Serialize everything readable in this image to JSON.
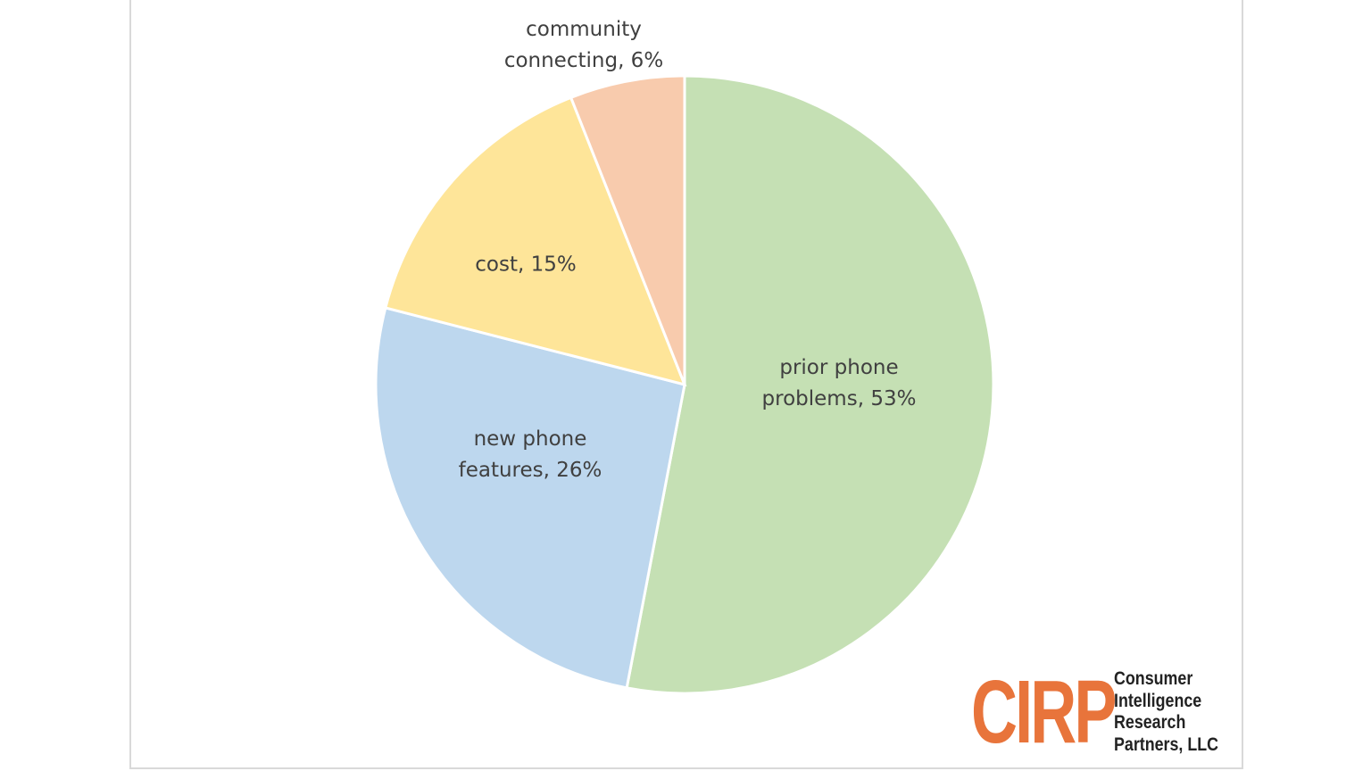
{
  "chart_data": {
    "type": "pie",
    "categories": [
      "prior phone problems",
      "new phone features",
      "cost",
      "community connecting"
    ],
    "values": [
      53,
      26,
      15,
      6
    ],
    "value_labels": [
      "prior phone problems, 53%",
      "new phone features, 26%",
      "cost, 15%",
      "community connecting, 6%"
    ],
    "colors": [
      "#c5e0b4",
      "#bdd7ee",
      "#fee599",
      "#f8cbad"
    ]
  },
  "logo": {
    "mark": "CIRP",
    "lines": [
      "Consumer",
      "Intelligence",
      "Research",
      "Partners, LLC"
    ]
  }
}
